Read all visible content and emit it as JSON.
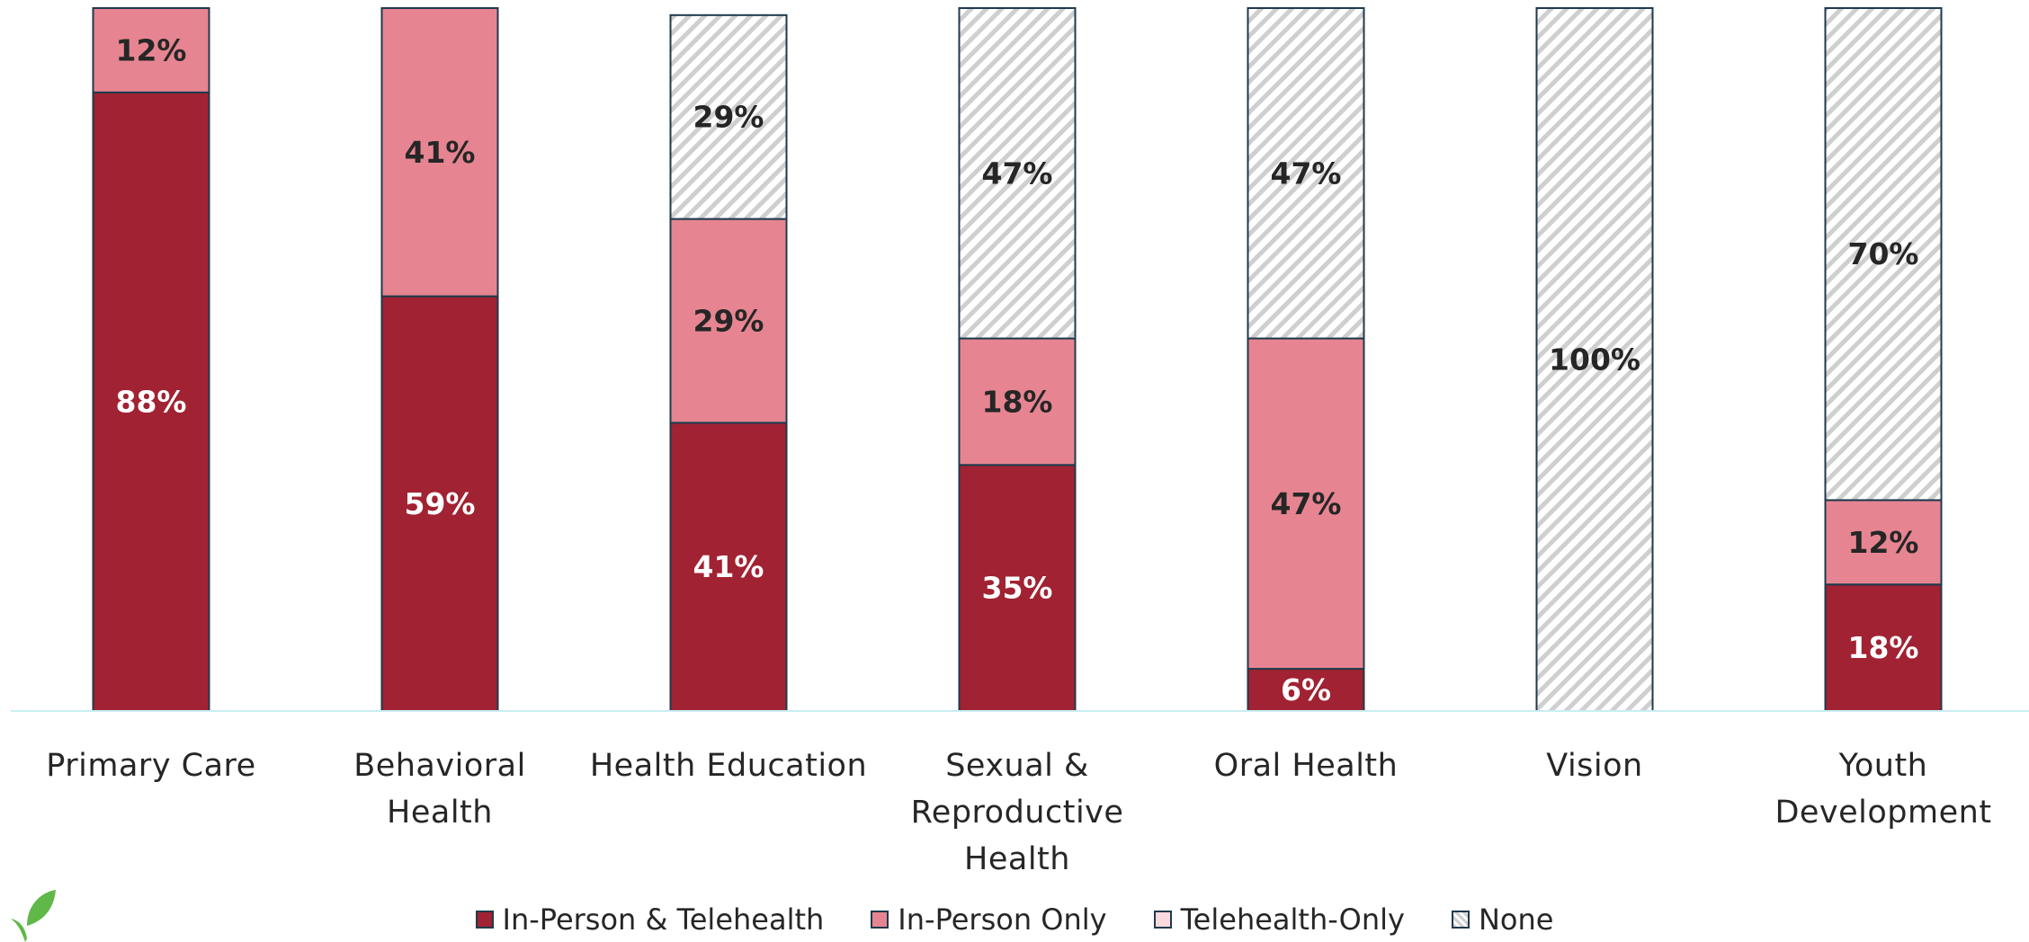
{
  "chart_data": {
    "type": "stacked_bar",
    "categories": [
      "Primary Care",
      "Behavioral Health",
      "Health Education",
      "Sexual & Reproductive Health",
      "Oral Health",
      "Vision",
      "Youth Development"
    ],
    "series": [
      {
        "name": "In-Person & Telehealth",
        "color": "#a12232",
        "label_color": "#ffffff",
        "values": [
          88,
          59,
          41,
          35,
          6,
          0,
          18
        ],
        "value_labels": [
          "88%",
          "59%",
          "41%",
          "35%",
          "6%",
          null,
          "18%"
        ]
      },
      {
        "name": "In-Person Only",
        "color": "#e68591",
        "label_color": "#262626",
        "values": [
          12,
          41,
          29,
          18,
          47,
          0,
          12
        ],
        "value_labels": [
          "12%",
          "41%",
          "29%",
          "18%",
          "47%",
          null,
          "12%"
        ]
      },
      {
        "name": "Telehealth-Only",
        "color": "#fbd9de",
        "label_color": "#262626",
        "values": [
          0,
          0,
          0,
          0,
          0,
          0,
          0
        ],
        "value_labels": [
          null,
          null,
          null,
          null,
          null,
          null,
          null
        ]
      },
      {
        "name": "None",
        "color": "#cfcfcf",
        "pattern": "hatch",
        "label_color": "#262626",
        "values": [
          0,
          0,
          29,
          47,
          47,
          100,
          70
        ],
        "value_labels": [
          null,
          null,
          "29%",
          "47%",
          "47%",
          "100%",
          "70%"
        ]
      }
    ],
    "ylim": [
      0,
      100
    ],
    "legend": "bottom"
  }
}
